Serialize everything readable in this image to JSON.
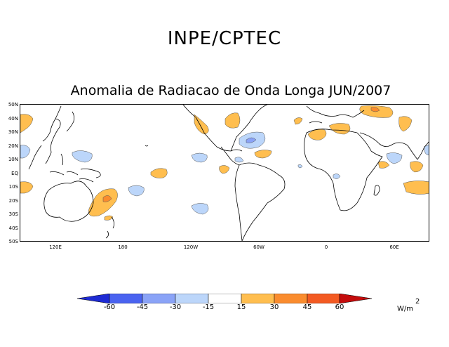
{
  "header": {
    "agency": "INPE/CPTEC"
  },
  "map": {
    "title": "Anomalia de Radiacao de Onda Longa JUN/2007",
    "lat_labels": [
      "50N",
      "40N",
      "30N",
      "20N",
      "10N",
      "EQ",
      "10S",
      "20S",
      "30S",
      "40S",
      "50S"
    ],
    "lon_labels": [
      "120E",
      "180",
      "120W",
      "60W",
      "0",
      "60E"
    ]
  },
  "legend": {
    "levels": [
      "-60",
      "-45",
      "-30",
      "-15",
      "15",
      "30",
      "45",
      "60"
    ],
    "colors": [
      "#1e2bd4",
      "#4a63f0",
      "#8aa3f7",
      "#bcd6fa",
      "#ffffff",
      "#ffbe4f",
      "#fa8c2e",
      "#f35a22",
      "#c40c0c"
    ],
    "units": "W/m",
    "units_exp": "2"
  }
}
